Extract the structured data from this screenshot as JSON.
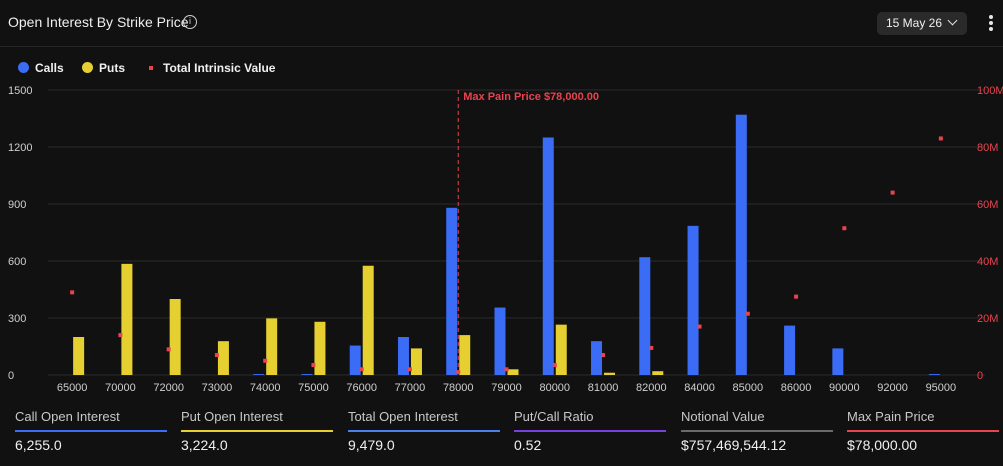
{
  "header": {
    "title": "Open Interest By Strike Price",
    "info_icon": "info-icon",
    "date_selector": "15 May 26",
    "more_icon": "more-vertical-icon"
  },
  "legend": [
    {
      "label": "Calls",
      "color": "#3b6cf5",
      "marker": "circle"
    },
    {
      "label": "Puts",
      "color": "#e6cf30",
      "marker": "circle"
    },
    {
      "label": "Total Intrinsic Value",
      "color": "#e8434f",
      "marker": "square"
    }
  ],
  "chart_data": {
    "type": "bar",
    "categories": [
      "65000",
      "70000",
      "72000",
      "73000",
      "74000",
      "75000",
      "76000",
      "77000",
      "78000",
      "79000",
      "80000",
      "81000",
      "82000",
      "84000",
      "85000",
      "86000",
      "90000",
      "92000",
      "95000"
    ],
    "series": [
      {
        "name": "Calls",
        "axis": "left",
        "color": "#3b6cf5",
        "values": [
          0,
          0,
          0,
          0,
          5,
          5,
          155,
          200,
          880,
          355,
          1250,
          178,
          620,
          785,
          1370,
          260,
          140,
          0,
          5
        ]
      },
      {
        "name": "Puts",
        "axis": "left",
        "color": "#e6cf30",
        "values": [
          200,
          585,
          400,
          178,
          298,
          280,
          575,
          140,
          210,
          30,
          265,
          12,
          20,
          0,
          0,
          0,
          0,
          0,
          0
        ]
      },
      {
        "name": "Total Intrinsic Value",
        "axis": "right",
        "color": "#e8434f",
        "type": "scatter",
        "values": [
          29,
          14,
          9,
          7,
          5,
          3.5,
          2,
          2,
          1,
          2,
          3.5,
          7,
          9.5,
          17,
          21.5,
          27.5,
          51.5,
          64,
          83
        ]
      }
    ],
    "yticks_left": [
      "0",
      "300",
      "600",
      "900",
      "1200",
      "1500"
    ],
    "ylim_left": [
      0,
      1500
    ],
    "yticks_right": [
      "0",
      "20M",
      "40M",
      "60M",
      "80M",
      "100M"
    ],
    "ylim_right_millions": [
      0,
      100
    ],
    "marker_line": {
      "category": "78000",
      "label": "Max Pain Price $78,000.00",
      "color": "#e8434f"
    },
    "grid": "horizontal",
    "legend_position": "top-left"
  },
  "stats": [
    {
      "label": "Call Open Interest",
      "value": "6,255.0",
      "color": "#3b6cf5"
    },
    {
      "label": "Put Open Interest",
      "value": "3,224.0",
      "color": "#e6cf30"
    },
    {
      "label": "Total Open Interest",
      "value": "9,479.0",
      "color": "#4a7ff0"
    },
    {
      "label": "Put/Call Ratio",
      "value": "0.52",
      "color": "#7a3fe0"
    },
    {
      "label": "Notional Value",
      "value": "$757,469,544.12",
      "color": "#6a6a6a"
    },
    {
      "label": "Max Pain Price",
      "value": "$78,000.00",
      "color": "#e8434f"
    }
  ]
}
